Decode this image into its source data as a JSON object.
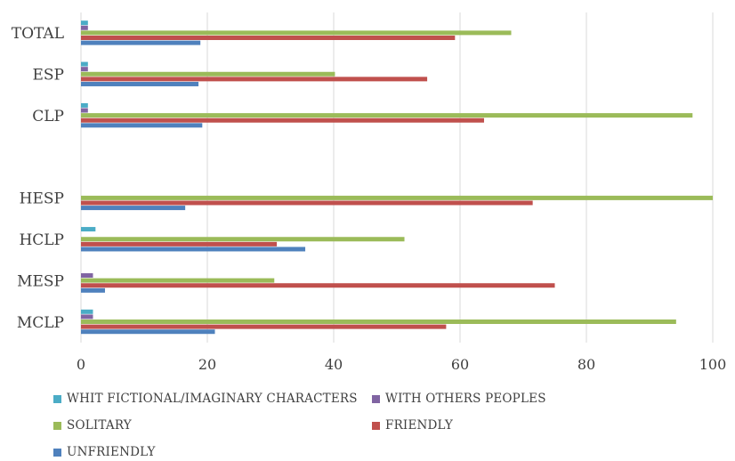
{
  "chart_data": {
    "type": "bar",
    "orientation": "horizontal",
    "categories": [
      "MCLP",
      "MESP",
      "HCLP",
      "HESP",
      "",
      "CLP",
      "ESP",
      "TOTAL"
    ],
    "xlim": [
      0,
      100
    ],
    "xticks": [
      0,
      20,
      40,
      60,
      80,
      100
    ],
    "grid": true,
    "legend_position": "bottom",
    "series": [
      {
        "name": "UNFRIENDLY",
        "color": "#4f81bd",
        "values": [
          21.2,
          3.8,
          35.5,
          16.5,
          null,
          19.2,
          18.6,
          18.9
        ]
      },
      {
        "name": "FRIENDLY",
        "color": "#c0504d",
        "values": [
          57.8,
          75.0,
          31.0,
          71.5,
          null,
          63.8,
          54.8,
          59.2
        ]
      },
      {
        "name": "SOLITARY",
        "color": "#9bbb59",
        "values": [
          94.2,
          30.6,
          51.2,
          100.0,
          null,
          96.8,
          40.2,
          68.1
        ]
      },
      {
        "name": "WITH OTHERS PEOPLES",
        "color": "#8064a2",
        "values": [
          1.9,
          1.9,
          0.0,
          0.0,
          null,
          1.1,
          1.1,
          1.1
        ]
      },
      {
        "name": "WHIT FICTIONAL/IMAGINARY CHARACTERS",
        "color": "#4bacc6",
        "values": [
          1.9,
          0.0,
          2.3,
          0.0,
          null,
          1.1,
          1.1,
          1.1
        ]
      }
    ],
    "legend_order": [
      "WHIT FICTIONAL/IMAGINARY CHARACTERS",
      "WITH OTHERS PEOPLES",
      "SOLITARY",
      "FRIENDLY",
      "UNFRIENDLY"
    ]
  }
}
